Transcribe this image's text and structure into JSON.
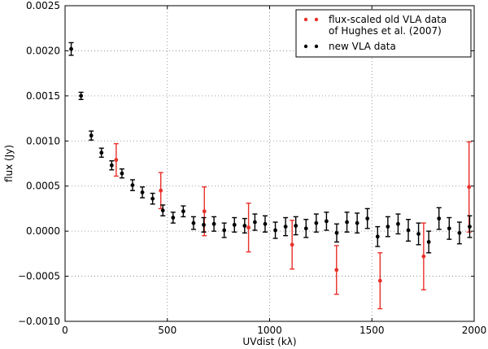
{
  "chart_data": {
    "type": "scatter",
    "title": "",
    "xlabel": "UVdist (kλ)",
    "ylabel": "flux (Jy)",
    "xlim": [
      0,
      2000
    ],
    "ylim": [
      -0.001,
      0.0025
    ],
    "xticks": [
      0,
      500,
      1000,
      1500,
      2000
    ],
    "yticks": [
      -0.001,
      -0.0005,
      0.0,
      0.0005,
      0.001,
      0.0015,
      0.002,
      0.0025
    ],
    "xtick_labels": [
      "0",
      "500",
      "1000",
      "1500",
      "2000"
    ],
    "ytick_labels": [
      "−0.0010",
      "−0.0005",
      "0.0000",
      "0.0005",
      "0.0010",
      "0.0015",
      "0.0020",
      "0.0025"
    ],
    "grid": true,
    "grid_style": "dotted",
    "legend_position": "top-right",
    "series": [
      {
        "name": "flux-scaled old VLA data of Hughes et al. (2007)",
        "legend_lines": [
          "flux-scaled old VLA data",
          "of Hughes et al. (2007)"
        ],
        "color": "#e8302a",
        "x": [
          250,
          468,
          681,
          897,
          1110,
          1327,
          1540,
          1753,
          1975
        ],
        "y": [
          0.00079,
          0.00045,
          0.00022,
          4e-05,
          -0.00015,
          -0.00043,
          -0.00055,
          -0.00028,
          0.00049
        ],
        "err": [
          0.00018,
          0.0002,
          0.00027,
          0.00027,
          0.00027,
          0.00027,
          0.00031,
          0.00037,
          0.0005
        ]
      },
      {
        "name": "new VLA data",
        "legend_lines": [
          "new VLA data"
        ],
        "color": "#000000",
        "x": [
          30,
          78,
          128,
          178,
          228,
          278,
          330,
          378,
          428,
          478,
          528,
          578,
          628,
          678,
          728,
          778,
          828,
          878,
          928,
          978,
          1028,
          1078,
          1128,
          1178,
          1228,
          1278,
          1328,
          1378,
          1428,
          1478,
          1528,
          1578,
          1628,
          1678,
          1728,
          1778,
          1828,
          1878,
          1928,
          1978
        ],
        "y": [
          0.00202,
          0.0015,
          0.00106,
          0.00087,
          0.00073,
          0.00064,
          0.00051,
          0.00043,
          0.00036,
          0.00023,
          0.00015,
          0.00022,
          9e-05,
          7e-05,
          8e-05,
          1e-05,
          7e-05,
          6e-05,
          0.0001,
          8e-05,
          1e-05,
          5e-05,
          6e-05,
          3e-05,
          9e-05,
          0.00011,
          -2e-05,
          0.0001,
          9e-05,
          0.00014,
          -6e-05,
          5e-05,
          8e-05,
          1e-05,
          -3e-05,
          -0.00012,
          0.00014,
          3e-05,
          -2e-05,
          5e-05
        ],
        "err": [
          7e-05,
          4e-05,
          5e-05,
          5e-05,
          5e-05,
          5e-05,
          6e-05,
          6e-05,
          6e-05,
          6e-05,
          6e-05,
          6e-05,
          7e-05,
          8e-05,
          8e-05,
          8e-05,
          8e-05,
          8e-05,
          9e-05,
          9e-05,
          9e-05,
          0.0001,
          0.0001,
          0.0001,
          0.0001,
          0.0001,
          0.0001,
          0.00011,
          0.00011,
          0.00011,
          0.00011,
          0.00011,
          0.00011,
          0.00012,
          0.00012,
          0.00012,
          0.00012,
          0.00012,
          0.00012,
          0.00012
        ]
      }
    ]
  }
}
